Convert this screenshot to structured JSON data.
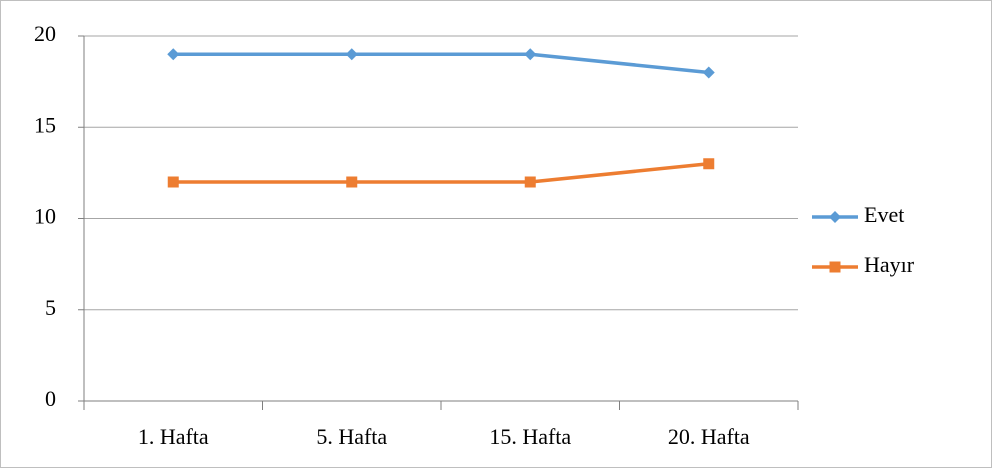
{
  "chart_data": {
    "type": "line",
    "categories": [
      "1. Hafta",
      "5. Hafta",
      "15. Hafta",
      "20. Hafta"
    ],
    "series": [
      {
        "name": "Evet",
        "color": "#5b9bd5",
        "marker": "diamond",
        "values": [
          19,
          19,
          19,
          18
        ]
      },
      {
        "name": "Hayır",
        "color": "#ed7d31",
        "marker": "square",
        "values": [
          12,
          12,
          12,
          13
        ]
      }
    ],
    "ylim": [
      0,
      20
    ],
    "yticks": [
      0,
      5,
      10,
      15,
      20
    ],
    "grid": true,
    "legend": "right"
  }
}
